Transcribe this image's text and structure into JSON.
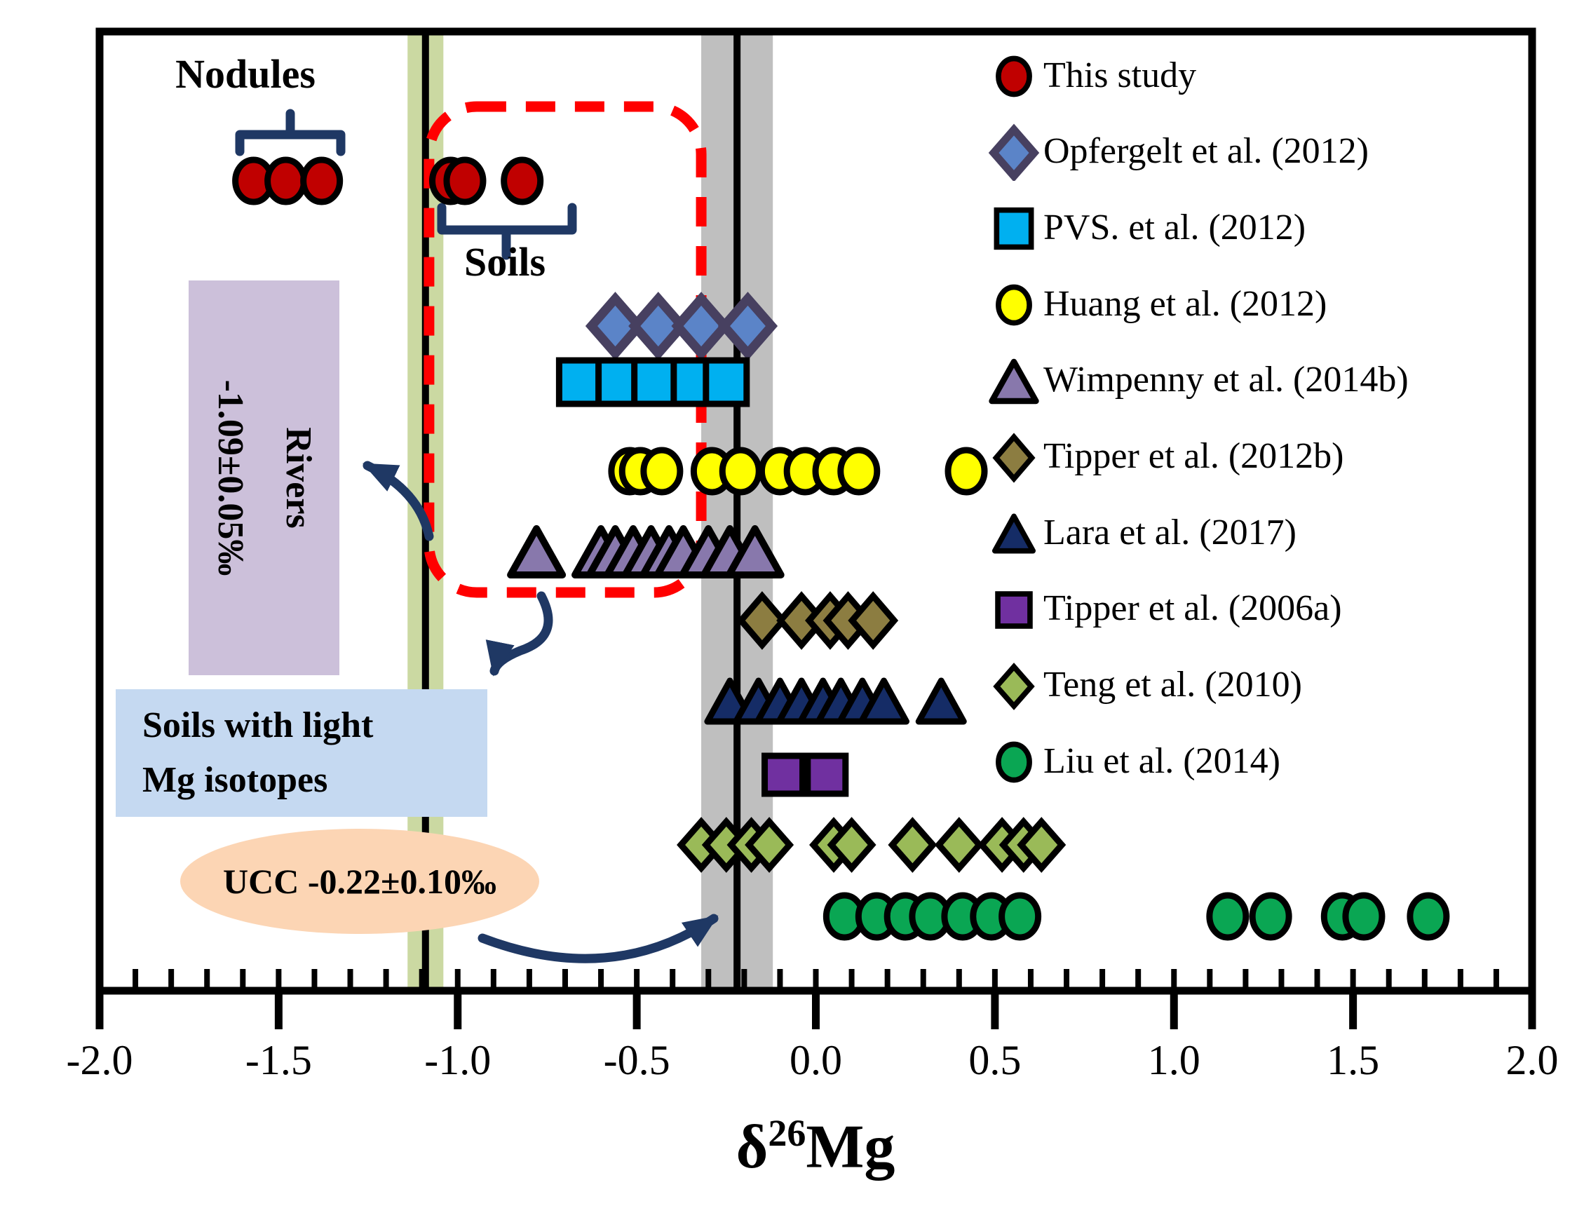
{
  "figure": {
    "background": "#FFFFFF",
    "frame_color": "#000000",
    "annotation_color": "#1F3864",
    "highlight_dash_color": "#FF0000"
  },
  "chart_data": {
    "type": "scatter",
    "title": "",
    "xlabel": {
      "base": "δ",
      "sup": "26",
      "rest": "Mg"
    },
    "ylabel": "",
    "xlim": [
      -2.0,
      2.0
    ],
    "x_major_ticks": [
      -2.0,
      -1.5,
      -1.0,
      -0.5,
      0.0,
      0.5,
      1.0,
      1.5,
      2.0
    ],
    "x_tick_labels": [
      "-2.0",
      "-1.5",
      "-1.0",
      "-0.5",
      "0.0",
      "0.5",
      "1.0",
      "1.5",
      "2.0"
    ],
    "x_minor_step": 0.1,
    "grid": false,
    "legend_position": "upper right",
    "reference_bands": [
      {
        "key": "rivers",
        "label": "Rivers",
        "value": -1.09,
        "uncertainty": 0.05,
        "band_color": "#CBD9A2",
        "line_color": "#000000"
      },
      {
        "key": "ucc",
        "label": "UCC",
        "value": -0.22,
        "uncertainty": 0.1,
        "band_color": "#BFBFBF",
        "line_color": "#000000"
      }
    ],
    "highlight_box": {
      "note": "red dashed rounded box around soil samples",
      "color": "#FF0000",
      "x_range": [
        -1.08,
        -0.32
      ]
    },
    "series": [
      {
        "key": "this-study",
        "label": "This study",
        "marker": "circle",
        "fill": "#C00000",
        "stroke": "#000000",
        "stroke_width": 9,
        "half_w": 26,
        "half_h": 30,
        "row_y": 258,
        "groups": [
          {
            "name": "Nodules",
            "x": [
              -1.57,
              -1.48,
              -1.38
            ]
          },
          {
            "name": "Soils",
            "x": [
              -1.02,
              -0.98,
              -0.82
            ]
          }
        ]
      },
      {
        "key": "opfergelt-2012",
        "label": "Opfergelt et al. (2012)",
        "marker": "diamond",
        "fill": "#5B84C8",
        "stroke": "#474060",
        "stroke_width": 13,
        "half_w": 34,
        "half_h": 39,
        "row_y": 465,
        "x": [
          -0.56,
          -0.44,
          -0.32,
          -0.19
        ]
      },
      {
        "key": "pvs-2012",
        "label": "PVS. et al. (2012)",
        "marker": "square",
        "fill": "#00B0F0",
        "stroke": "#000000",
        "stroke_width": 9,
        "half_w": 29,
        "half_h": 31,
        "row_y": 545,
        "x": [
          -0.66,
          -0.55,
          -0.45,
          -0.34,
          -0.25
        ]
      },
      {
        "key": "huang-2012",
        "label": "Huang et al. (2012)",
        "marker": "circle",
        "fill": "#FFFF00",
        "stroke": "#000000",
        "stroke_width": 9,
        "half_w": 26,
        "half_h": 30,
        "row_y": 672,
        "x": [
          -0.52,
          -0.49,
          -0.43,
          -0.29,
          -0.21,
          -0.1,
          -0.03,
          0.05,
          0.12,
          0.42
        ]
      },
      {
        "key": "wimpenny-2014b",
        "label": "Wimpenny et al. (2014b)",
        "marker": "triangle",
        "fill": "#8878AC",
        "stroke": "#000000",
        "stroke_width": 10,
        "half_w": 37,
        "half_h": 33,
        "row_y": 787,
        "x": [
          -0.78,
          -0.6,
          -0.56,
          -0.51,
          -0.46,
          -0.41,
          -0.37,
          -0.3,
          -0.24,
          -0.17
        ]
      },
      {
        "key": "tipper-2012b",
        "label": "Tipper et al. (2012b)",
        "marker": "diamond",
        "fill": "#8C7D41",
        "stroke": "#000000",
        "stroke_width": 9,
        "half_w": 30,
        "half_h": 35,
        "row_y": 885,
        "x": [
          -0.15,
          -0.04,
          0.04,
          0.09,
          0.16
        ]
      },
      {
        "key": "lara-2017",
        "label": "Lara et al. (2017)",
        "marker": "triangle",
        "fill": "#152C66",
        "stroke": "#000000",
        "stroke_width": 9,
        "half_w": 32,
        "half_h": 29,
        "row_y": 1000,
        "x": [
          -0.24,
          -0.16,
          -0.1,
          -0.04,
          0.02,
          0.07,
          0.13,
          0.19,
          0.35
        ]
      },
      {
        "key": "tipper-2006a",
        "label": "Tipper et al. (2006a)",
        "marker": "square",
        "fill": "#7030A0",
        "stroke": "#000000",
        "stroke_width": 9,
        "half_w": 27,
        "half_h": 27,
        "row_y": 1105,
        "x": [
          -0.09,
          0.03
        ]
      },
      {
        "key": "teng-2010",
        "label": "Teng et al. (2010)",
        "marker": "diamond",
        "fill": "#9ABA58",
        "stroke": "#000000",
        "stroke_width": 9,
        "half_w": 29,
        "half_h": 33,
        "row_y": 1205,
        "x": [
          -0.32,
          -0.25,
          -0.18,
          -0.13,
          0.05,
          0.1,
          0.27,
          0.4,
          0.52,
          0.58,
          0.63
        ]
      },
      {
        "key": "liu-2014",
        "label": "Liu et al. (2014)",
        "marker": "circle",
        "fill": "#0AA653",
        "stroke": "#000000",
        "stroke_width": 9,
        "half_w": 26,
        "half_h": 30,
        "row_y": 1307,
        "x": [
          0.08,
          0.17,
          0.25,
          0.32,
          0.41,
          0.49,
          0.57,
          1.15,
          1.27,
          1.47,
          1.53,
          1.71
        ]
      }
    ]
  },
  "annotations": {
    "nodules_label": "Nodules",
    "soils_label": "Soils",
    "rivers_box": {
      "line1": "Rivers",
      "line2": "-1.09±0.05‰",
      "bg": "#CCC0DA"
    },
    "soils_light_box": {
      "line1": "Soils with light",
      "line2": "Mg isotopes",
      "bg": "#C5D9F1"
    },
    "ucc_ellipse": {
      "text": "UCC -0.22±0.10‰",
      "bg": "#FCD5B4"
    }
  }
}
